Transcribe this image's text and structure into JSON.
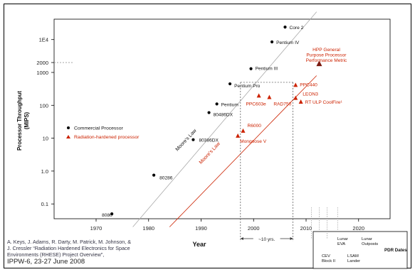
{
  "chart_data": {
    "type": "scatter",
    "xlabel": "Year",
    "ylabel": "Processor Throughput\n(MIPS)",
    "xlim": [
      1962,
      2026
    ],
    "ylim_log10": [
      -1.45,
      4.62
    ],
    "log_y": true,
    "x_ticks": [
      1970,
      1980,
      1990,
      2000,
      2010,
      2020
    ],
    "y_ticks": [
      {
        "value": 0.1,
        "label": "0.1"
      },
      {
        "value": 1,
        "label": "1.0"
      },
      {
        "value": 10,
        "label": "10"
      },
      {
        "value": 100,
        "label": "100"
      },
      {
        "value": 1000,
        "label": "1000"
      },
      {
        "value": 2000,
        "label": "2000"
      },
      {
        "value": 10000,
        "label": "1E4"
      }
    ],
    "legend": [
      {
        "name": "Commercial Processor",
        "marker": "circle",
        "color": "#000000"
      },
      {
        "name": "Radiation-hardened processor",
        "marker": "triangle",
        "color": "#cc2200"
      }
    ],
    "series": [
      {
        "name": "Commercial Processor",
        "color": "#000000",
        "points": [
          {
            "label": "8080",
            "x": 1973,
            "y": 0.05
          },
          {
            "label": "80286",
            "x": 1981,
            "y": 0.75
          },
          {
            "label": "80386DX",
            "x": 1988.5,
            "y": 9
          },
          {
            "label": "80486DX",
            "x": 1991.5,
            "y": 60
          },
          {
            "label": "Pentium",
            "x": 1993,
            "y": 110
          },
          {
            "label": "Pentium Pro",
            "x": 1995.5,
            "y": 450
          },
          {
            "label": "Pentium III",
            "x": 1999.5,
            "y": 1300
          },
          {
            "label": "Pentium IV",
            "x": 2003.5,
            "y": 8500
          },
          {
            "label": "Core 2",
            "x": 2006,
            "y": 24000
          }
        ]
      },
      {
        "name": "Radiation-hardened processor",
        "color": "#cc2200",
        "points": [
          {
            "label": "Mongoose V",
            "x": 1997,
            "y": 12
          },
          {
            "label": "R6000",
            "x": 1998,
            "y": 17
          },
          {
            "label": "PPC603e",
            "x": 2001,
            "y": 200
          },
          {
            "label": "RAD750",
            "x": 2003,
            "y": 180
          },
          {
            "label": "PPC440",
            "x": 2008,
            "y": 420
          },
          {
            "label": "LEON3",
            "x": 2008,
            "y": 170
          },
          {
            "label": "RT ULP CoolFire¹",
            "x": 2009,
            "y": 130
          },
          {
            "label": "HPP General\nPurpose Processor\nPerformance Metric",
            "x": 2012.5,
            "y": 1900
          }
        ]
      }
    ],
    "trend_lines": [
      {
        "label": "Moore's Law",
        "color": "#aaaaaa",
        "from": {
          "x": 1977,
          "y": 0.02
        },
        "to": {
          "x": 2012,
          "y": 70000
        }
      },
      {
        "label": "Moore's Law",
        "color": "#cc2200",
        "from": {
          "x": 1984,
          "y": 0.02
        },
        "to": {
          "x": 2012,
          "y": 800
        }
      }
    ],
    "annotations": {
      "span_label": "~10 yrs.",
      "span_from_x": 1997.5,
      "span_to_x": 2007.5,
      "pdr_title": "PDR Dates",
      "pdr_items": [
        {
          "label": "CEV\nBlock II",
          "x": 2011
        },
        {
          "label": "Lunar\nEVA",
          "x": 2012.5
        },
        {
          "label": "LSAM\nLander",
          "x": 2014
        },
        {
          "label": "Lunar\nOutposts",
          "x": 2016
        }
      ]
    }
  },
  "citation": {
    "lines": [
      "A. Keys, J. Adams, R. Darty, M. Patrick, M. Johnson, &",
      "J. Cressler “Radiation Hardened Electronics for Space",
      "Environments (RHESE) Project Overview”,"
    ],
    "venue": "IPPW-6, 23-27 June 2008"
  },
  "colors": {
    "commercial": "#000000",
    "rad_hard": "#cc2200",
    "frame": "#000000",
    "guide": "#666666"
  }
}
